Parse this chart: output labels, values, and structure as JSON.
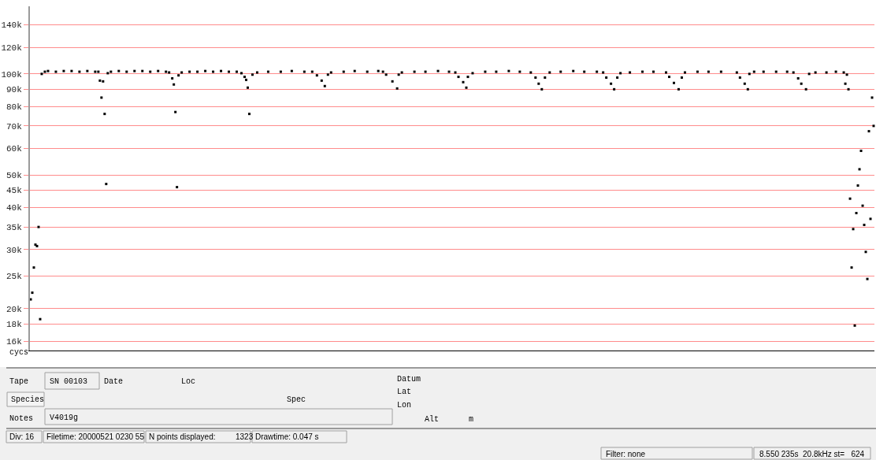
{
  "chart_data": {
    "type": "scatter",
    "marker": "square",
    "grid": "y",
    "log": "y",
    "tick_labels": "y",
    "ylim": [
      15000,
      159000
    ],
    "yticks": [
      {
        "value": 16000,
        "label": "16k"
      },
      {
        "value": 18000,
        "label": "18k"
      },
      {
        "value": 20000,
        "label": "20k"
      },
      {
        "value": 25000,
        "label": "25k"
      },
      {
        "value": 30000,
        "label": "30k"
      },
      {
        "value": 35000,
        "label": "35k"
      },
      {
        "value": 40000,
        "label": "40k"
      },
      {
        "value": 45000,
        "label": "45k"
      },
      {
        "value": 50000,
        "label": "50k"
      },
      {
        "value": 60000,
        "label": "60k"
      },
      {
        "value": 70000,
        "label": "70k"
      },
      {
        "value": 80000,
        "label": "80k"
      },
      {
        "value": 90000,
        "label": "90k"
      },
      {
        "value": 100000,
        "label": "100k"
      },
      {
        "value": 120000,
        "label": "120k"
      },
      {
        "value": 140000,
        "label": "140k"
      }
    ],
    "annotations": [
      "cycs",
      "Tape",
      "SN 00103",
      "Date",
      "Loc",
      "Species",
      "Spec",
      "Notes",
      "V4019g",
      "Datum",
      "Lat",
      "Lon",
      "Alt",
      "m",
      "Div: 16",
      "Filetime: 20000521 0230 55",
      "N points displayed:",
      "1323",
      "Drawtime: 0.047 s",
      "Filter: none",
      "8.550 235s  20.8kHz st=   624"
    ],
    "categories": [
      null,
      null,
      null,
      null,
      null,
      null,
      null,
      null,
      null,
      null,
      null,
      null,
      null,
      null,
      null,
      null,
      null,
      null,
      null,
      null,
      null,
      null,
      null,
      null,
      null,
      null,
      null,
      null,
      null,
      null,
      null,
      null,
      null,
      null,
      null,
      null,
      null,
      null,
      null,
      null,
      null,
      null,
      null,
      null,
      null,
      null,
      null,
      null,
      null,
      null,
      null,
      null,
      null,
      null,
      null,
      null,
      null,
      null,
      null,
      null,
      null,
      null,
      null,
      null,
      null,
      null,
      null,
      null,
      null,
      null,
      null,
      null,
      null,
      null,
      null,
      null,
      null,
      null,
      null,
      null,
      null,
      null,
      null,
      null,
      null,
      null,
      null,
      null,
      null,
      null,
      null,
      null,
      null,
      null,
      null,
      null,
      null,
      null,
      null,
      null,
      null,
      null,
      null,
      null,
      null,
      null,
      null,
      null,
      null,
      null,
      null,
      null,
      null,
      null,
      null,
      null,
      null,
      null,
      null,
      null,
      null,
      null,
      null,
      null,
      null,
      null,
      null,
      null,
      null,
      null,
      null,
      null,
      null,
      null,
      null,
      null,
      null,
      null,
      null,
      null,
      null,
      null,
      null,
      null,
      null,
      null,
      null,
      null,
      null,
      null,
      null,
      null,
      null,
      null,
      null,
      null,
      null,
      null,
      null,
      null,
      null,
      null,
      null,
      null,
      null,
      null,
      null,
      null,
      null,
      null,
      null,
      null,
      null,
      null,
      null,
      null,
      null,
      null,
      null,
      null,
      null,
      null,
      null,
      null,
      null,
      null,
      null,
      null,
      null,
      null,
      null,
      null,
      null,
      null,
      null,
      null,
      null,
      null,
      null,
      null,
      null,
      null,
      null,
      null,
      null,
      null,
      null,
      null,
      null,
      null,
      null,
      null,
      null,
      null,
      null,
      null,
      null,
      null,
      null,
      null,
      null,
      null,
      null,
      null,
      null,
      null,
      null,
      null,
      null,
      null,
      null,
      null,
      null,
      null,
      null,
      null,
      null,
      null,
      null,
      null,
      null,
      null,
      null,
      null,
      null,
      null,
      null,
      null,
      null,
      null,
      null,
      null,
      null,
      null,
      null,
      null,
      null,
      null,
      null,
      null,
      null,
      null,
      null,
      null,
      null,
      null,
      null,
      null,
      null,
      null,
      null,
      null,
      null,
      null,
      null,
      null,
      null,
      null,
      null,
      null,
      null,
      null,
      null,
      null,
      null,
      null,
      null,
      null,
      null,
      null,
      null,
      null,
      null,
      null,
      null,
      null,
      null,
      null,
      null,
      null,
      null,
      null,
      null,
      null,
      null,
      null,
      null,
      null,
      null,
      null,
      null,
      null,
      null,
      null,
      null,
      null,
      null,
      null,
      null,
      null,
      null,
      null,
      null,
      null,
      null,
      null,
      null,
      null,
      null,
      null,
      null,
      null,
      null,
      null,
      null,
      null,
      null,
      null,
      null,
      null,
      null,
      null,
      null,
      null,
      null,
      null,
      null,
      null,
      null,
      null,
      null,
      null,
      null,
      null,
      null,
      null,
      null,
      null,
      null,
      null,
      null,
      null,
      null,
      null,
      null,
      null,
      null,
      null,
      null,
      null,
      null,
      null,
      null,
      null,
      null,
      null,
      null,
      null,
      null,
      null,
      null,
      null,
      null,
      null,
      null,
      null,
      null,
      null,
      null,
      null,
      null,
      null,
      null,
      null,
      null,
      null,
      null,
      null,
      null,
      null,
      null,
      null,
      null,
      null,
      null,
      null,
      null,
      null,
      null,
      null,
      null,
      null,
      null,
      null,
      null,
      null,
      null,
      null,
      null,
      null,
      null,
      null,
      null,
      null,
      null,
      null,
      null,
      null,
      null,
      null,
      null,
      null,
      null,
      null,
      null,
      null,
      null,
      null,
      null,
      null,
      null,
      null,
      null,
      null,
      null,
      null,
      null,
      null,
      null,
      null,
      null,
      null,
      null,
      null,
      null,
      null,
      null,
      null,
      null,
      null,
      null,
      null,
      null,
      null,
      null,
      null,
      null,
      null,
      null,
      null,
      null,
      null,
      null,
      null,
      null,
      null,
      null,
      null,
      null,
      null,
      null,
      null,
      null,
      null,
      null,
      null,
      null,
      null,
      null,
      null,
      null,
      null,
      null,
      null,
      null,
      null,
      null,
      null,
      null,
      null,
      null,
      null,
      null,
      null,
      null,
      null,
      null,
      null,
      null,
      null,
      null,
      null,
      null,
      null,
      null,
      null,
      null,
      null,
      null,
      null,
      null,
      null,
      null,
      null,
      null,
      null,
      null,
      null,
      null,
      null,
      null,
      null,
      null,
      null,
      null,
      null,
      null
    ],
    "series": [
      {
        "color": "#000000",
        "values": [
          21300,
          22300,
          26500,
          31000,
          30700,
          35000,
          18600,
          100000,
          null,
          101500,
          null,
          102000,
          null,
          null,
          null,
          null,
          101500,
          null,
          null,
          null,
          null,
          102000,
          null,
          null,
          null,
          null,
          102000,
          null,
          null,
          null,
          null,
          101500,
          null,
          null,
          null,
          null,
          102000,
          null,
          null,
          null,
          null,
          101500,
          null,
          101500,
          95500,
          85000,
          95000,
          76000,
          47000,
          100500,
          null,
          101500,
          null,
          null,
          null,
          null,
          102000,
          null,
          null,
          null,
          null,
          101500,
          null,
          null,
          null,
          null,
          102000,
          null,
          null,
          null,
          null,
          102000,
          null,
          null,
          null,
          null,
          101500,
          null,
          null,
          null,
          null,
          102000,
          null,
          null,
          null,
          null,
          101500,
          null,
          101000,
          null,
          97000,
          93000,
          77000,
          46000,
          99000,
          null,
          101000,
          null,
          null,
          null,
          null,
          101500,
          null,
          null,
          null,
          null,
          101500,
          null,
          null,
          null,
          null,
          102000,
          null,
          null,
          null,
          null,
          101500,
          null,
          null,
          null,
          null,
          102000,
          null,
          null,
          null,
          null,
          101500,
          null,
          null,
          null,
          null,
          101500,
          null,
          null,
          100500,
          null,
          98000,
          96000,
          91000,
          76000,
          null,
          99500,
          null,
          null,
          101000,
          null,
          null,
          null,
          null,
          null,
          null,
          101500,
          null,
          null,
          null,
          null,
          null,
          null,
          null,
          101500,
          null,
          null,
          null,
          null,
          null,
          null,
          102000,
          null,
          null,
          null,
          null,
          null,
          null,
          null,
          101500,
          null,
          null,
          null,
          null,
          101500,
          null,
          null,
          99000,
          null,
          null,
          95500,
          null,
          92000,
          null,
          99500,
          null,
          101000,
          null,
          null,
          null,
          null,
          null,
          null,
          null,
          101500,
          null,
          null,
          null,
          null,
          null,
          null,
          102000,
          null,
          null,
          null,
          null,
          null,
          null,
          null,
          101500,
          null,
          null,
          null,
          null,
          null,
          null,
          102000,
          null,
          null,
          101500,
          null,
          99500,
          null,
          null,
          null,
          95000,
          null,
          null,
          90500,
          99500,
          null,
          101000,
          null,
          null,
          null,
          null,
          null,
          null,
          null,
          101500,
          null,
          null,
          null,
          null,
          null,
          null,
          101500,
          null,
          null,
          null,
          null,
          null,
          null,
          null,
          102000,
          null,
          null,
          null,
          null,
          null,
          null,
          101500,
          null,
          null,
          null,
          101000,
          null,
          98000,
          null,
          null,
          94500,
          null,
          91000,
          98000,
          null,
          null,
          100500,
          null,
          null,
          null,
          null,
          null,
          null,
          null,
          101500,
          null,
          null,
          null,
          null,
          null,
          null,
          101500,
          null,
          null,
          null,
          null,
          null,
          null,
          null,
          102000,
          null,
          null,
          null,
          null,
          null,
          null,
          101500,
          null,
          null,
          null,
          null,
          null,
          null,
          101000,
          null,
          null,
          97500,
          null,
          93500,
          null,
          90000,
          null,
          97500,
          null,
          null,
          101000,
          null,
          null,
          null,
          null,
          null,
          null,
          101500,
          null,
          null,
          null,
          null,
          null,
          null,
          null,
          102000,
          null,
          null,
          null,
          null,
          null,
          null,
          101500,
          null,
          null,
          null,
          null,
          null,
          null,
          null,
          101500,
          null,
          null,
          null,
          101000,
          null,
          97500,
          null,
          null,
          93500,
          null,
          90000,
          null,
          97500,
          null,
          100500,
          null,
          null,
          null,
          null,
          null,
          101000,
          null,
          null,
          null,
          null,
          null,
          null,
          null,
          101500,
          null,
          null,
          null,
          null,
          null,
          null,
          101500,
          null,
          null,
          null,
          null,
          null,
          null,
          null,
          101000,
          null,
          98000,
          null,
          null,
          94000,
          null,
          null,
          90000,
          null,
          97500,
          null,
          101000,
          null,
          null,
          null,
          null,
          null,
          null,
          null,
          101500,
          null,
          null,
          null,
          null,
          null,
          null,
          101500,
          null,
          null,
          null,
          null,
          null,
          null,
          null,
          101500,
          null,
          null,
          null,
          null,
          null,
          null,
          null,
          null,
          null,
          101000,
          null,
          97500,
          null,
          null,
          93500,
          null,
          90000,
          100000,
          null,
          null,
          101500,
          null,
          null,
          null,
          null,
          null,
          101500,
          null,
          null,
          null,
          null,
          null,
          null,
          null,
          101500,
          null,
          null,
          null,
          null,
          null,
          null,
          101500,
          null,
          null,
          null,
          101000,
          null,
          null,
          97000,
          null,
          93500,
          null,
          null,
          90000,
          null,
          100000,
          null,
          null,
          null,
          101000,
          null,
          null,
          null,
          null,
          null,
          null,
          101000,
          null,
          null,
          null,
          null,
          null,
          101500,
          null,
          null,
          null,
          null,
          101000,
          93500,
          99500,
          90000,
          42500,
          26500,
          34500,
          17800,
          38500,
          46500,
          52000,
          59000,
          40500,
          35500,
          29500,
          24500,
          67500,
          37000,
          85000,
          70000
        ]
      }
    ]
  }
}
